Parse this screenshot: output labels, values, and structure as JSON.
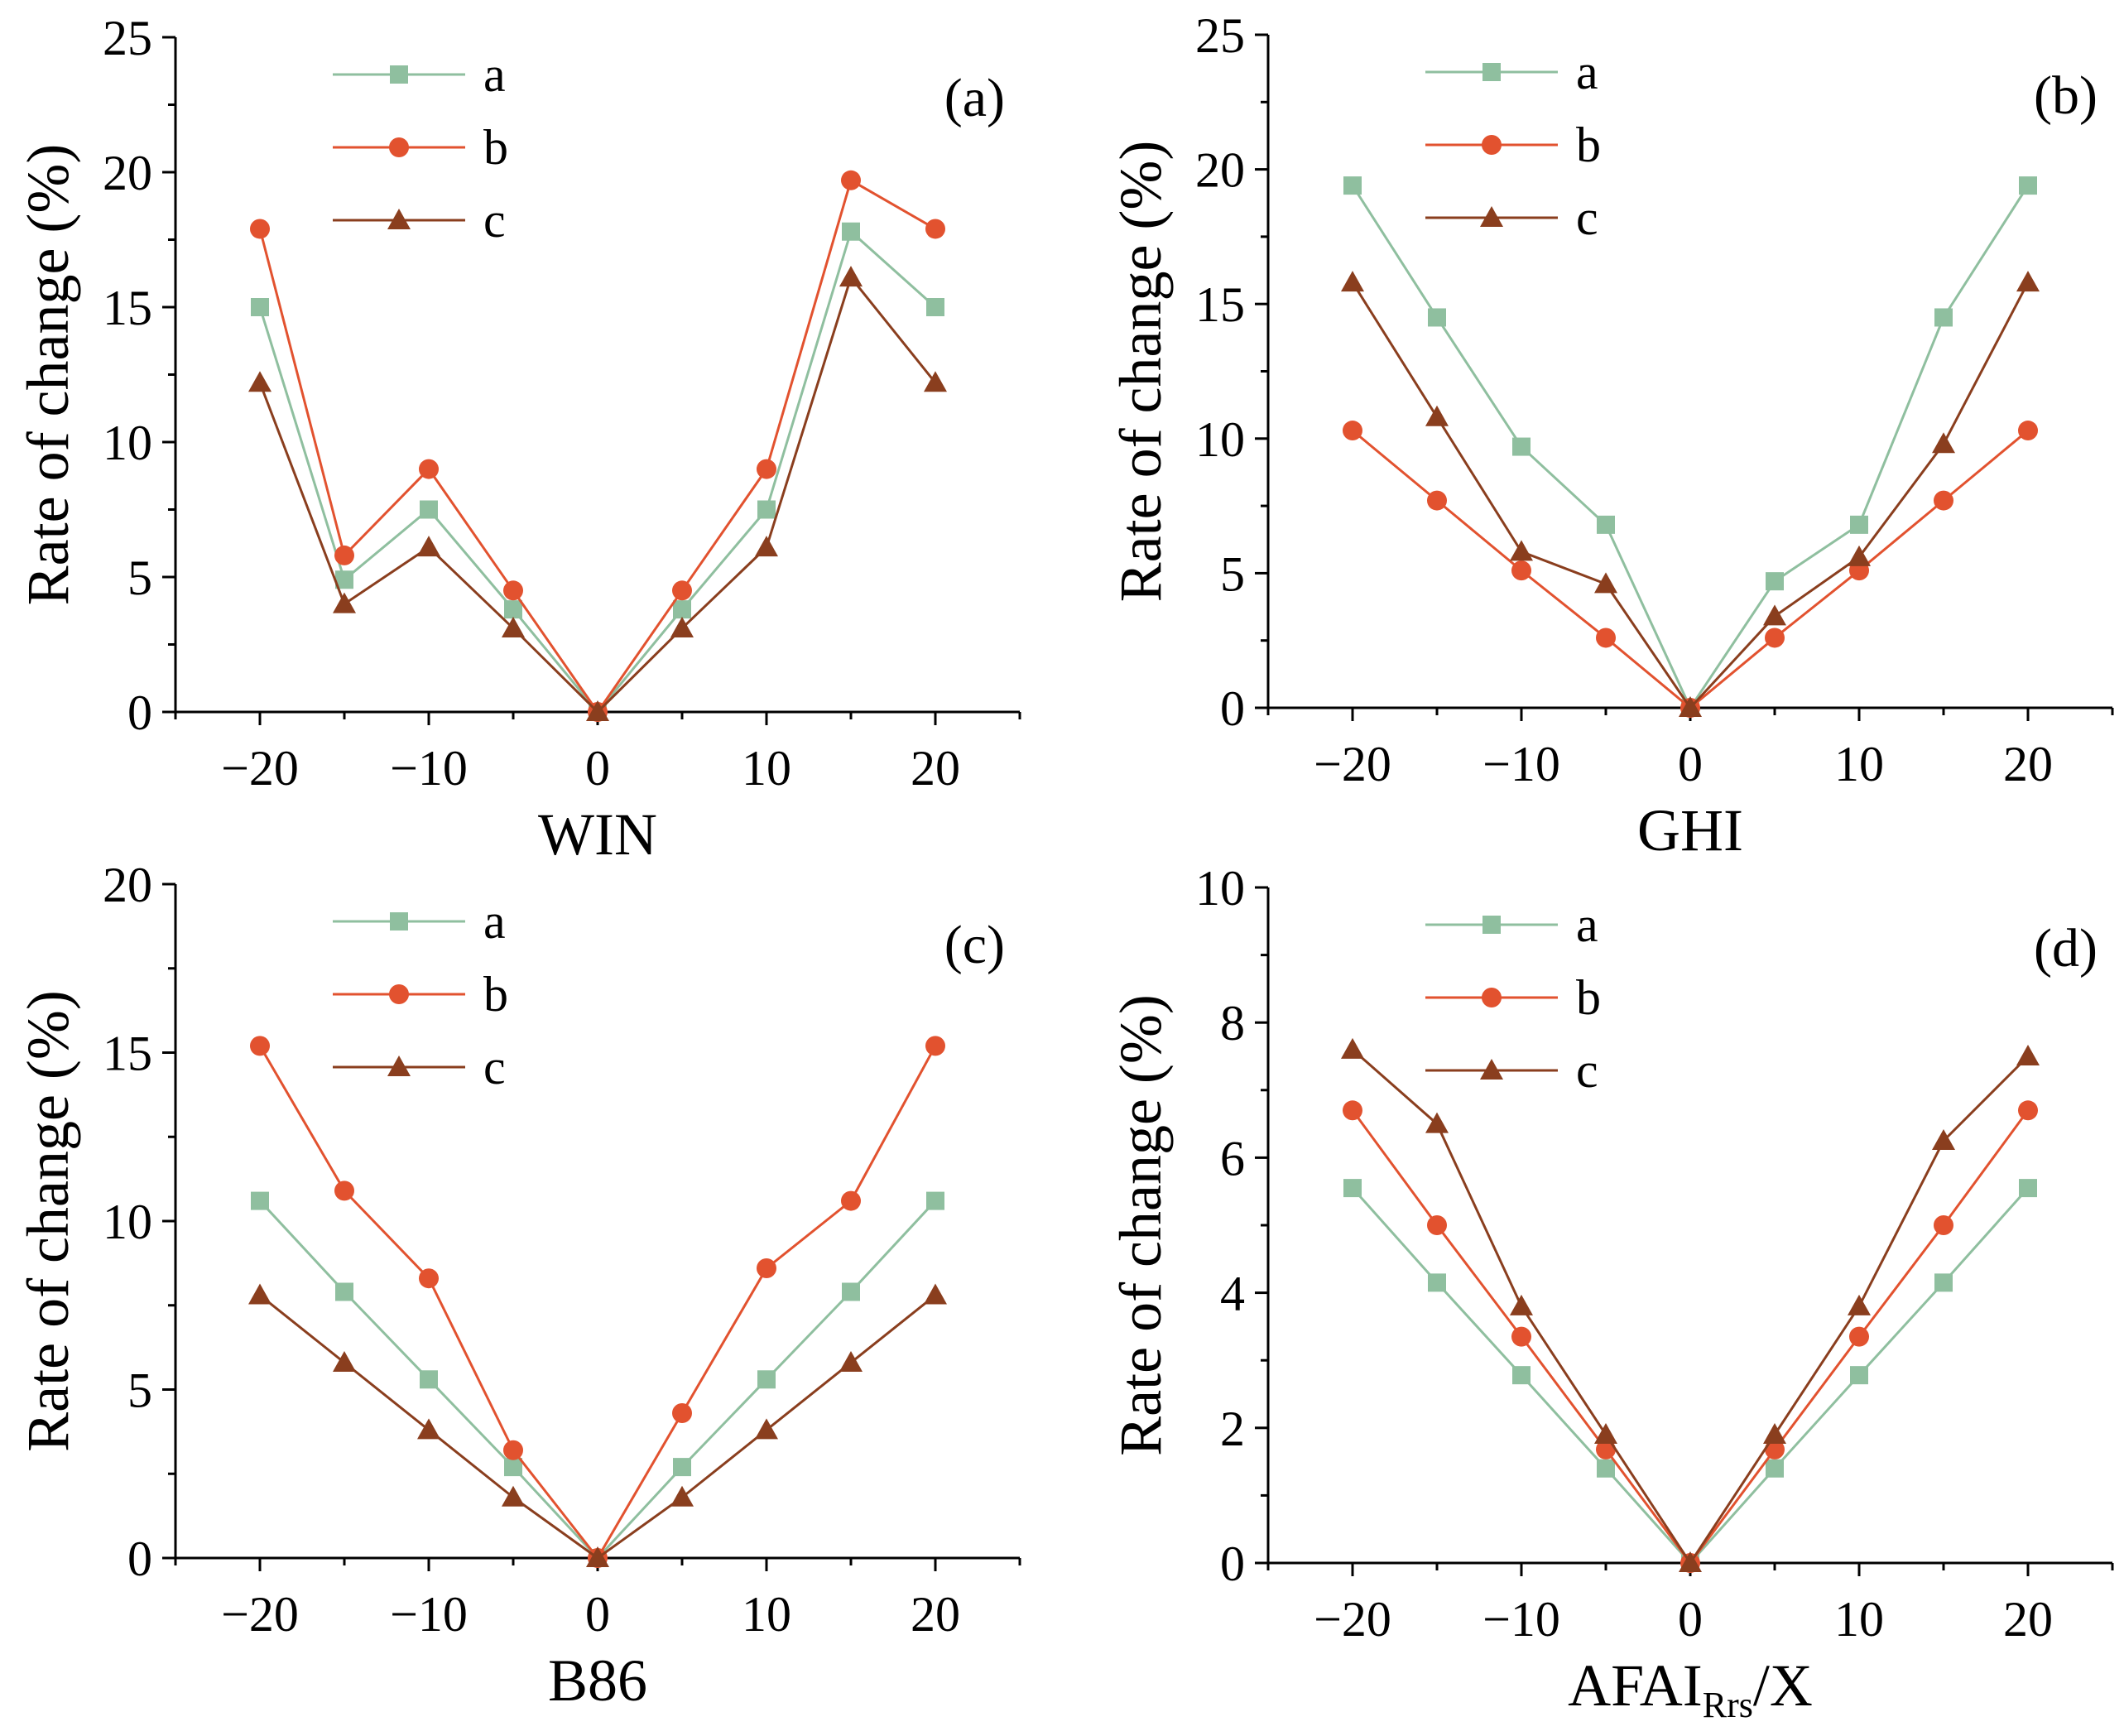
{
  "colors": {
    "a": "#8fbf9f",
    "b": "#e2522f",
    "c": "#8a3e1e",
    "axis": "#000000"
  },
  "chart_data": [
    {
      "type": "line",
      "panel": "(a)",
      "xlabel": "WIN",
      "xlabel_sub": "",
      "xlabel_tail": "",
      "ylabel": "Rate of change (%)",
      "xlim": [
        -25,
        25
      ],
      "ylim": [
        0,
        25
      ],
      "xticks": [
        -20,
        -10,
        0,
        10,
        20
      ],
      "xtick_labels": [
        "−20",
        "−10",
        "0",
        "10",
        "20"
      ],
      "yticks": [
        0,
        5,
        10,
        15,
        20,
        25
      ],
      "ytick_labels": [
        "0",
        "5",
        "10",
        "15",
        "20",
        "25"
      ],
      "x": [
        -20,
        -15,
        -10,
        -5,
        0,
        5,
        10,
        15,
        20
      ],
      "series": [
        {
          "name": "a",
          "marker": "square",
          "values": [
            15.0,
            4.9,
            7.5,
            3.8,
            0,
            3.8,
            7.5,
            17.8,
            15.0
          ]
        },
        {
          "name": "b",
          "marker": "circle",
          "values": [
            17.9,
            5.8,
            9.0,
            4.5,
            0,
            4.5,
            9.0,
            19.7,
            17.9
          ]
        },
        {
          "name": "c",
          "marker": "triangle",
          "values": [
            12.2,
            4.0,
            6.1,
            3.1,
            0,
            3.1,
            6.1,
            16.1,
            12.2
          ]
        }
      ],
      "legend": "top-left"
    },
    {
      "type": "line",
      "panel": "(b)",
      "xlabel": "GHI",
      "xlabel_sub": "",
      "xlabel_tail": "",
      "ylabel": "Rate of change (%)",
      "xlim": [
        -25,
        25
      ],
      "ylim": [
        0,
        25
      ],
      "xticks": [
        -20,
        -10,
        0,
        10,
        20
      ],
      "xtick_labels": [
        "−20",
        "−10",
        "0",
        "10",
        "20"
      ],
      "yticks": [
        0,
        5,
        10,
        15,
        20,
        25
      ],
      "ytick_labels": [
        "0",
        "5",
        "10",
        "15",
        "20",
        "25"
      ],
      "x": [
        -20,
        -15,
        -10,
        -5,
        0,
        5,
        10,
        15,
        20
      ],
      "series": [
        {
          "name": "a",
          "marker": "square",
          "values": [
            19.4,
            14.5,
            9.7,
            6.8,
            0,
            4.7,
            6.8,
            14.5,
            19.4
          ]
        },
        {
          "name": "b",
          "marker": "circle",
          "values": [
            10.3,
            7.7,
            5.1,
            2.6,
            0,
            2.6,
            5.1,
            7.7,
            10.3
          ]
        },
        {
          "name": "c",
          "marker": "triangle",
          "values": [
            15.8,
            10.8,
            5.8,
            4.6,
            0,
            3.4,
            5.6,
            9.8,
            15.8
          ]
        }
      ],
      "legend": "top-left"
    },
    {
      "type": "line",
      "panel": "(c)",
      "xlabel": "B86",
      "xlabel_sub": "",
      "xlabel_tail": "",
      "ylabel": "Rate of change (%)",
      "xlim": [
        -25,
        25
      ],
      "ylim": [
        0,
        20
      ],
      "xticks": [
        -20,
        -10,
        0,
        10,
        20
      ],
      "xtick_labels": [
        "−20",
        "−10",
        "0",
        "10",
        "20"
      ],
      "yticks": [
        0,
        5,
        10,
        15,
        20
      ],
      "ytick_labels": [
        "0",
        "5",
        "10",
        "15",
        "20"
      ],
      "x": [
        -20,
        -15,
        -10,
        -5,
        0,
        5,
        10,
        15,
        20
      ],
      "series": [
        {
          "name": "a",
          "marker": "square",
          "values": [
            10.6,
            7.9,
            5.3,
            2.7,
            0,
            2.7,
            5.3,
            7.9,
            10.6
          ]
        },
        {
          "name": "b",
          "marker": "circle",
          "values": [
            15.2,
            10.9,
            8.3,
            3.2,
            0,
            4.3,
            8.6,
            10.6,
            15.2
          ]
        },
        {
          "name": "c",
          "marker": "triangle",
          "values": [
            7.8,
            5.8,
            3.8,
            1.8,
            0,
            1.8,
            3.8,
            5.8,
            7.8
          ]
        }
      ],
      "legend": "top-left"
    },
    {
      "type": "line",
      "panel": "(d)",
      "xlabel": "AFAI",
      "xlabel_sub": "Rrs",
      "xlabel_tail": "/X",
      "ylabel": "Rate of change (%)",
      "xlim": [
        -25,
        25
      ],
      "ylim": [
        0,
        10
      ],
      "xticks": [
        -20,
        -10,
        0,
        10,
        20
      ],
      "xtick_labels": [
        "−20",
        "−10",
        "0",
        "10",
        "20"
      ],
      "yticks": [
        0,
        2,
        4,
        6,
        8,
        10
      ],
      "ytick_labels": [
        "0",
        "2",
        "4",
        "6",
        "8",
        "10"
      ],
      "x": [
        -20,
        -15,
        -10,
        -5,
        0,
        5,
        10,
        15,
        20
      ],
      "series": [
        {
          "name": "a",
          "marker": "square",
          "values": [
            5.55,
            4.15,
            2.78,
            1.4,
            0,
            1.4,
            2.78,
            4.15,
            5.55
          ]
        },
        {
          "name": "b",
          "marker": "circle",
          "values": [
            6.7,
            5.0,
            3.35,
            1.68,
            0,
            1.68,
            3.35,
            5.0,
            6.7
          ]
        },
        {
          "name": "c",
          "marker": "triangle",
          "values": [
            7.6,
            6.5,
            3.8,
            1.9,
            0,
            1.9,
            3.8,
            6.25,
            7.5
          ]
        }
      ],
      "legend": "top-left"
    }
  ]
}
